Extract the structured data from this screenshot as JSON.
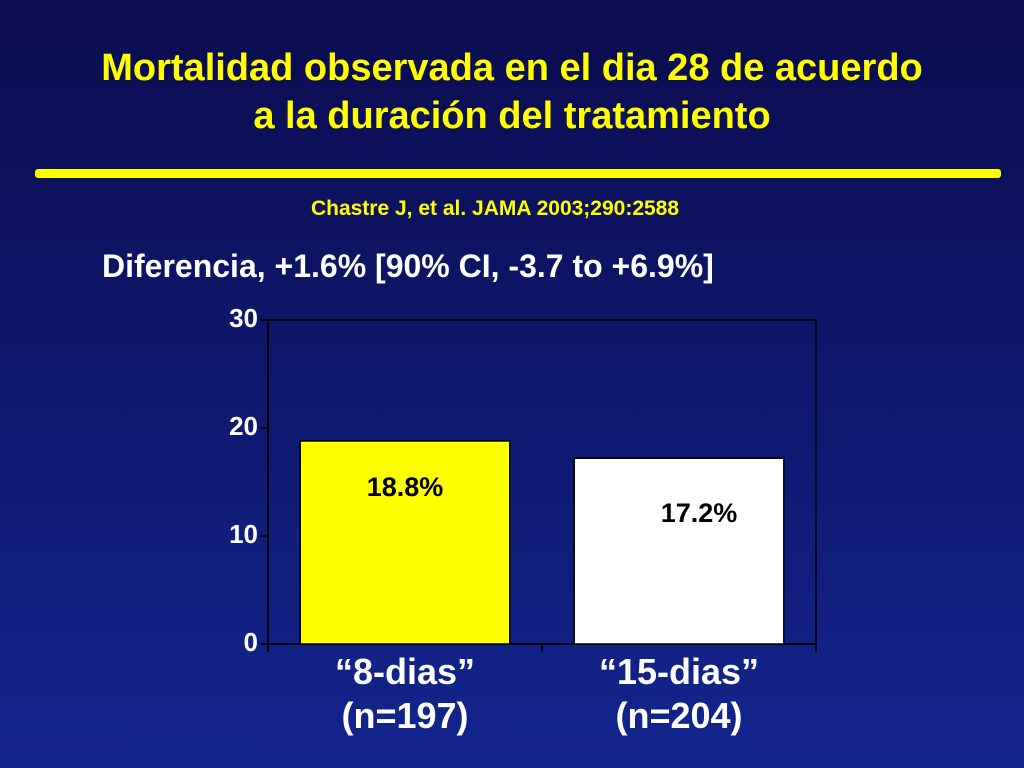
{
  "slide": {
    "title_line1": "Mortalidad observada en el dia 28 de acuerdo",
    "title_line2": "a la duración del tratamiento",
    "citation": "Chastre J, et al. JAMA 2003;290:2588",
    "difference": "Diferencia, +1.6% [90% CI, -3.7 to +6.9%]"
  },
  "colors": {
    "background_top": "#0c0c4e",
    "background_bottom": "#13268f",
    "accent": "#ffff00",
    "text": "#ffffff"
  },
  "chart_data": {
    "type": "bar",
    "categories": [
      [
        "“8-dias”",
        "(n=197)"
      ],
      [
        "“15-dias”",
        "(n=204)"
      ]
    ],
    "values": [
      18.8,
      17.2
    ],
    "data_labels": [
      "18.8%",
      "17.2%"
    ],
    "bar_colors": [
      "#ffff00",
      "#ffffff"
    ],
    "ylim": [
      0,
      30
    ],
    "yticks": [
      0,
      10,
      20,
      30
    ],
    "grid": false,
    "legend": "none"
  }
}
